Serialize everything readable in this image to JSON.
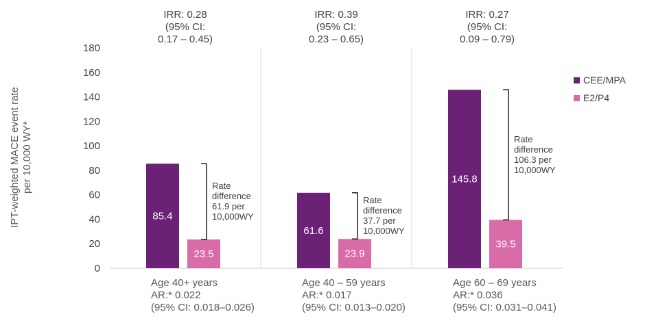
{
  "chart_data": {
    "type": "bar",
    "ylabel": [
      "IPT-weighted MACE event rate",
      "per 10,000 WY*"
    ],
    "ylim": [
      0,
      180
    ],
    "yticks": [
      0,
      20,
      40,
      60,
      80,
      100,
      120,
      140,
      160,
      180
    ],
    "grid": false,
    "legend_position": "right",
    "categories": [
      [
        "Age 40+ years",
        "AR:* 0.022",
        "(95% CI: 0.018–0.026)"
      ],
      [
        "Age 40 – 59 years",
        "AR:* 0.017",
        "(95% CI: 0.013–0.020)"
      ],
      [
        "Age 60 – 69 years",
        "AR:* 0.036",
        "(95% CI: 0.031–0.041)"
      ]
    ],
    "series": [
      {
        "name": "CEE/MPA",
        "color": "#6a2176",
        "values": [
          85.4,
          61.6,
          145.8
        ]
      },
      {
        "name": "E2/P4",
        "color": "#d96ba8",
        "values": [
          23.5,
          23.9,
          39.5
        ]
      }
    ],
    "data_labels": [
      [
        "85.4",
        "23.5"
      ],
      [
        "61.6",
        "23.9"
      ],
      [
        "145.8",
        "39.5"
      ]
    ],
    "irr_annotations": [
      [
        "IRR: 0.28",
        "(95% CI:",
        "0.17 – 0.45)"
      ],
      [
        "IRR: 0.39",
        "(95% CI:",
        "0.23 – 0.65)"
      ],
      [
        "IRR: 0.27",
        "(95% CI:",
        "0.09 – 0.79)"
      ]
    ],
    "rate_difference_annotations": [
      [
        "Rate",
        "difference",
        "61.9 per",
        "10,000WY"
      ],
      [
        "Rate",
        "difference",
        "37.7 per",
        "10,000WY"
      ],
      [
        "Rate",
        "difference",
        "106.3 per",
        "10,000WY"
      ]
    ]
  }
}
